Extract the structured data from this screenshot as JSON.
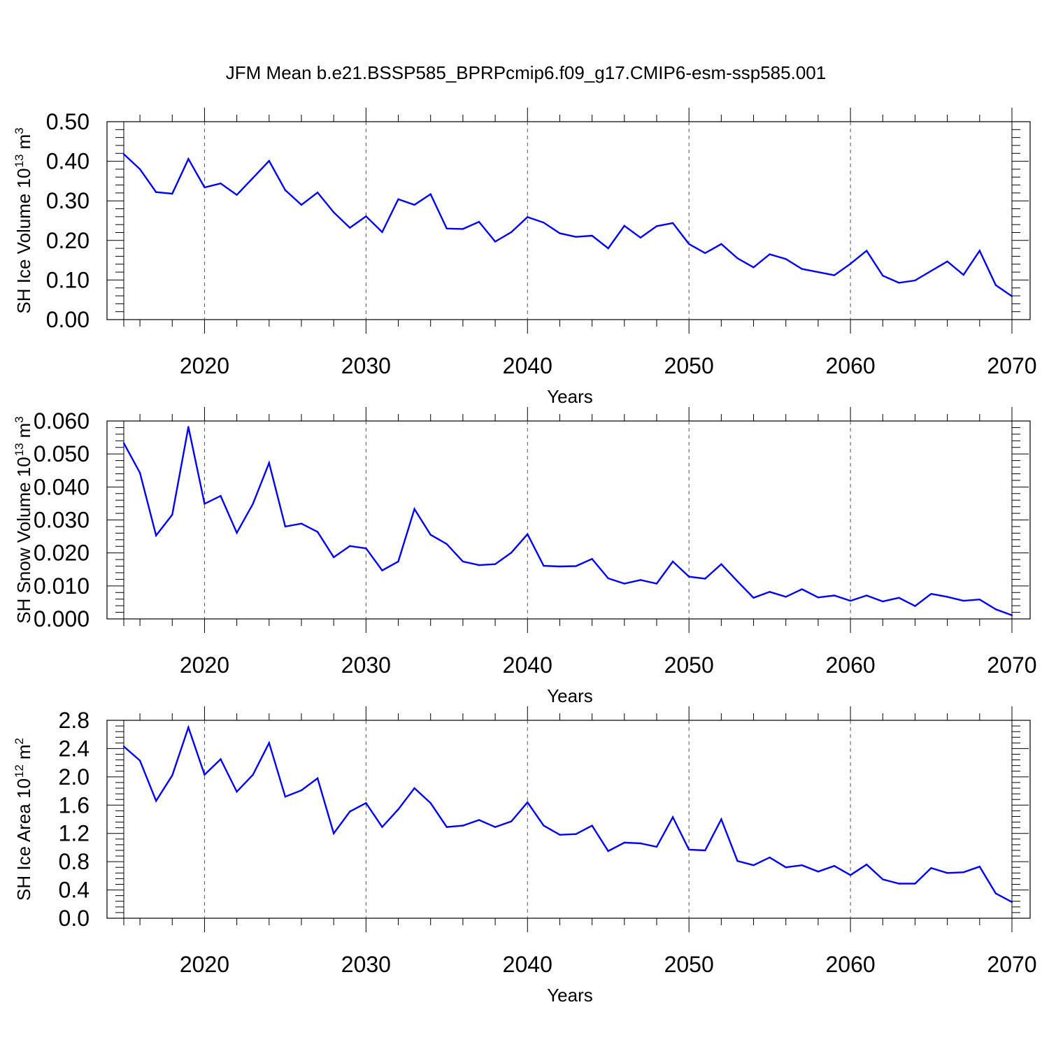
{
  "title": "JFM Mean b.e21.BSSP585_BPRPcmip6.f09_g17.CMIP6-esm-ssp585.001",
  "colors": {
    "line": "#0000ff",
    "axis": "#000000",
    "grid": "#555555",
    "background": "#ffffff"
  },
  "chart_data": [
    {
      "type": "line",
      "title": "",
      "xlabel": "Years",
      "ylabel": "SH Ice Volume 10",
      "ylabel_exponent": "13",
      "ylabel_unit": "m",
      "ylabel_unit_exponent": "3",
      "xlim": [
        2015,
        2070
      ],
      "ylim": [
        0.0,
        0.5
      ],
      "xticks": [
        2020,
        2030,
        2040,
        2050,
        2060,
        2070
      ],
      "yticks": [
        0.0,
        0.1,
        0.2,
        0.3,
        0.4,
        0.5
      ],
      "ytick_labels": [
        "0.00",
        "0.10",
        "0.20",
        "0.30",
        "0.40",
        "0.50"
      ],
      "grid": "vertical dashed at labeled years",
      "series": [
        {
          "x": [
            2015,
            2016,
            2017,
            2018,
            2019,
            2020,
            2021,
            2022,
            2023,
            2024,
            2025,
            2026,
            2027,
            2028,
            2029,
            2030,
            2031,
            2032,
            2033,
            2034,
            2035,
            2036,
            2037,
            2038,
            2039,
            2040,
            2041,
            2042,
            2043,
            2044,
            2045,
            2046,
            2047,
            2048,
            2049,
            2050,
            2051,
            2052,
            2053,
            2054,
            2055,
            2056,
            2057,
            2058,
            2059,
            2060,
            2061,
            2062,
            2063,
            2064,
            2065,
            2066,
            2067,
            2068,
            2069,
            2070
          ],
          "values": [
            0.418,
            0.38,
            0.322,
            0.318,
            0.406,
            0.334,
            0.344,
            0.315,
            0.358,
            0.401,
            0.327,
            0.29,
            0.321,
            0.271,
            0.232,
            0.261,
            0.221,
            0.304,
            0.29,
            0.317,
            0.23,
            0.229,
            0.247,
            0.197,
            0.221,
            0.259,
            0.245,
            0.218,
            0.209,
            0.212,
            0.18,
            0.237,
            0.207,
            0.236,
            0.244,
            0.191,
            0.168,
            0.191,
            0.155,
            0.132,
            0.165,
            0.153,
            0.128,
            0.12,
            0.112,
            0.141,
            0.174,
            0.111,
            0.093,
            0.099,
            0.123,
            0.147,
            0.113,
            0.174,
            0.087,
            0.059
          ]
        }
      ]
    },
    {
      "type": "line",
      "title": "",
      "xlabel": "Years",
      "ylabel": "SH Snow Volume 10",
      "ylabel_exponent": "13",
      "ylabel_unit": "m",
      "ylabel_unit_exponent": "3",
      "xlim": [
        2015,
        2070
      ],
      "ylim": [
        0.0,
        0.06
      ],
      "xticks": [
        2020,
        2030,
        2040,
        2050,
        2060,
        2070
      ],
      "yticks": [
        0.0,
        0.01,
        0.02,
        0.03,
        0.04,
        0.05,
        0.06
      ],
      "ytick_labels": [
        "0.000",
        "0.010",
        "0.020",
        "0.030",
        "0.040",
        "0.050",
        "0.060"
      ],
      "grid": "vertical dashed at labeled years",
      "series": [
        {
          "x": [
            2015,
            2016,
            2017,
            2018,
            2019,
            2020,
            2021,
            2022,
            2023,
            2024,
            2025,
            2026,
            2027,
            2028,
            2029,
            2030,
            2031,
            2032,
            2033,
            2034,
            2035,
            2036,
            2037,
            2038,
            2039,
            2040,
            2041,
            2042,
            2043,
            2044,
            2045,
            2046,
            2047,
            2048,
            2049,
            2050,
            2051,
            2052,
            2053,
            2054,
            2055,
            2056,
            2057,
            2058,
            2059,
            2060,
            2061,
            2062,
            2063,
            2064,
            2065,
            2066,
            2067,
            2068,
            2069,
            2070
          ],
          "values": [
            0.0533,
            0.0443,
            0.0253,
            0.0316,
            0.0582,
            0.0349,
            0.0373,
            0.0261,
            0.0349,
            0.0473,
            0.028,
            0.0289,
            0.0264,
            0.0187,
            0.0221,
            0.0214,
            0.0147,
            0.0174,
            0.0333,
            0.0255,
            0.0227,
            0.0174,
            0.0163,
            0.0166,
            0.0201,
            0.0257,
            0.0161,
            0.0159,
            0.016,
            0.0182,
            0.0123,
            0.0107,
            0.0118,
            0.0107,
            0.0174,
            0.0128,
            0.0122,
            0.0166,
            0.0114,
            0.0064,
            0.0082,
            0.0067,
            0.009,
            0.0065,
            0.0071,
            0.0055,
            0.0071,
            0.0053,
            0.0064,
            0.0039,
            0.0076,
            0.0067,
            0.0055,
            0.0059,
            0.0029,
            0.0011
          ]
        }
      ]
    },
    {
      "type": "line",
      "title": "",
      "xlabel": "Years",
      "ylabel": "SH Ice Area 10",
      "ylabel_exponent": "12",
      "ylabel_unit": "m",
      "ylabel_unit_exponent": "2",
      "xlim": [
        2015,
        2070
      ],
      "ylim": [
        0.0,
        2.8
      ],
      "xticks": [
        2020,
        2030,
        2040,
        2050,
        2060,
        2070
      ],
      "yticks": [
        0.0,
        0.4,
        0.8,
        1.2,
        1.6,
        2.0,
        2.4,
        2.8
      ],
      "ytick_labels": [
        "0.0",
        "0.4",
        "0.8",
        "1.2",
        "1.6",
        "2.0",
        "2.4",
        "2.8"
      ],
      "grid": "vertical dashed at labeled years",
      "series": [
        {
          "x": [
            2015,
            2016,
            2017,
            2018,
            2019,
            2020,
            2021,
            2022,
            2023,
            2024,
            2025,
            2026,
            2027,
            2028,
            2029,
            2030,
            2031,
            2032,
            2033,
            2034,
            2035,
            2036,
            2037,
            2038,
            2039,
            2040,
            2041,
            2042,
            2043,
            2044,
            2045,
            2046,
            2047,
            2048,
            2049,
            2050,
            2051,
            2052,
            2053,
            2054,
            2055,
            2056,
            2057,
            2058,
            2059,
            2060,
            2061,
            2062,
            2063,
            2064,
            2065,
            2066,
            2067,
            2068,
            2069,
            2070
          ],
          "values": [
            2.43,
            2.23,
            1.66,
            2.02,
            2.7,
            2.03,
            2.25,
            1.79,
            2.03,
            2.48,
            1.72,
            1.81,
            1.98,
            1.2,
            1.51,
            1.63,
            1.29,
            1.54,
            1.84,
            1.63,
            1.29,
            1.31,
            1.39,
            1.29,
            1.37,
            1.64,
            1.31,
            1.18,
            1.19,
            1.31,
            0.95,
            1.07,
            1.06,
            1.01,
            1.43,
            0.97,
            0.96,
            1.4,
            0.81,
            0.75,
            0.86,
            0.72,
            0.75,
            0.66,
            0.74,
            0.61,
            0.76,
            0.55,
            0.49,
            0.49,
            0.71,
            0.64,
            0.65,
            0.73,
            0.35,
            0.23
          ]
        }
      ]
    }
  ]
}
